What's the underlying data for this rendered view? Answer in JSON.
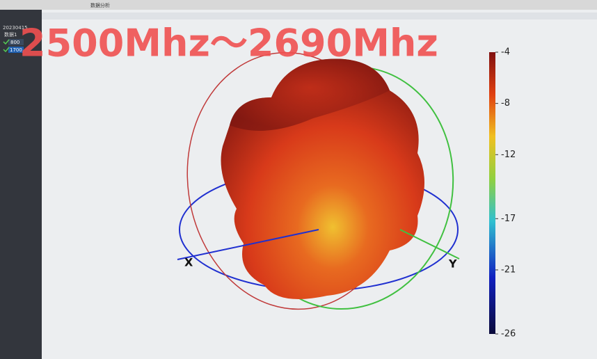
{
  "window": {
    "menu_title": "数据分析",
    "sidebar": {
      "root": "20230415",
      "group": "数据1",
      "items": [
        "800",
        "1700"
      ]
    }
  },
  "overlay_title": "2500Mhz～2690Mhz",
  "plot": {
    "axis_labels": {
      "x": "X",
      "y": "Y"
    },
    "colorbar": {
      "range": [
        -26,
        -4
      ],
      "ticks": [
        -4,
        -8,
        -12,
        -17,
        -21,
        -26
      ]
    }
  }
}
